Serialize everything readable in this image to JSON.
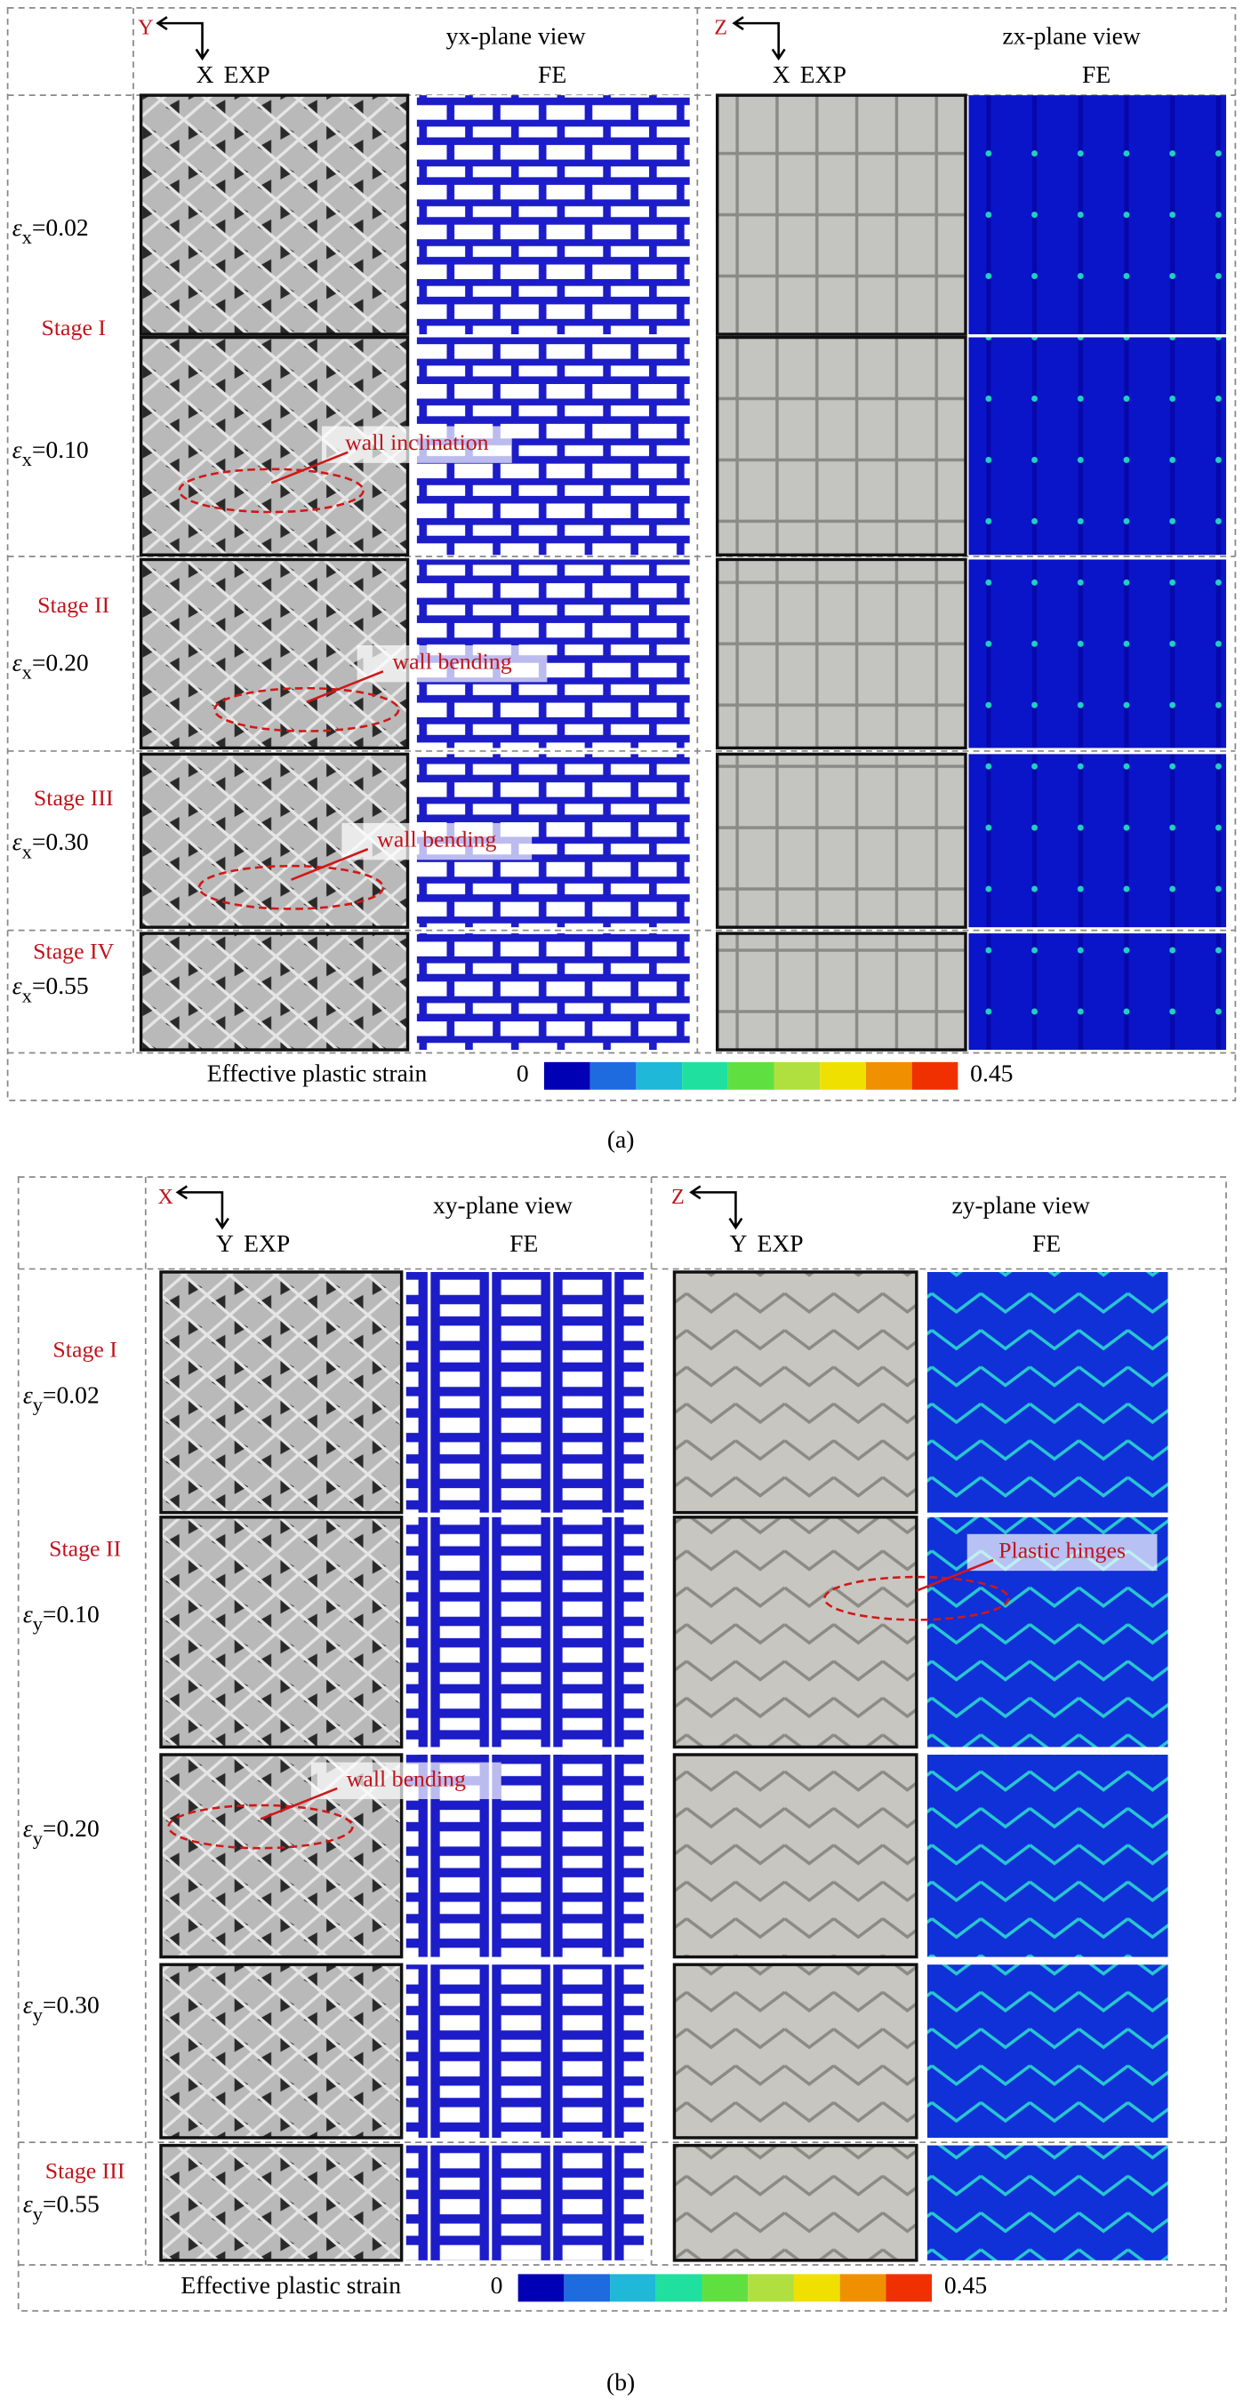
{
  "panel_a": {
    "caption": "(a)",
    "views": [
      {
        "title": "yx-plane view",
        "axis_h": "Y",
        "axis_v": "X",
        "columns": [
          "EXP",
          "FE"
        ]
      },
      {
        "title": "zx-plane view",
        "axis_h": "Z",
        "axis_v": "X",
        "columns": [
          "EXP",
          "FE"
        ]
      }
    ],
    "rows": [
      {
        "strain": {
          "symbol": "ε",
          "sub": "x",
          "value": "=0.02"
        }
      },
      {
        "stage": "Stage I",
        "strain": {
          "symbol": "ε",
          "sub": "x",
          "value": "=0.10"
        }
      },
      {
        "stage": "Stage II",
        "strain": {
          "symbol": "ε",
          "sub": "x",
          "value": "=0.20"
        }
      },
      {
        "stage": "Stage III",
        "strain": {
          "symbol": "ε",
          "sub": "x",
          "value": "=0.30"
        }
      },
      {
        "stage": "Stage IV",
        "strain": {
          "symbol": "ε",
          "sub": "x",
          "value": "=0.55"
        }
      }
    ],
    "annotations": [
      "wall inclination",
      "wall bending",
      "wall bending"
    ],
    "colorbar": {
      "label": "Effective plastic strain",
      "min": 0,
      "max": 0.45
    }
  },
  "panel_b": {
    "caption": "(b)",
    "views": [
      {
        "title": "xy-plane view",
        "axis_h": "X",
        "axis_v": "Y",
        "columns": [
          "EXP",
          "FE"
        ]
      },
      {
        "title": "zy-plane view",
        "axis_h": "Z",
        "axis_v": "Y",
        "columns": [
          "EXP",
          "FE"
        ]
      }
    ],
    "rows": [
      {
        "stage": "Stage I",
        "strain": {
          "symbol": "ε",
          "sub": "y",
          "value": "=0.02"
        }
      },
      {
        "stage": "Stage II",
        "strain": {
          "symbol": "ε",
          "sub": "y",
          "value": "=0.10"
        }
      },
      {
        "strain": {
          "symbol": "ε",
          "sub": "y",
          "value": "=0.20"
        }
      },
      {
        "strain": {
          "symbol": "ε",
          "sub": "y",
          "value": "=0.30"
        }
      },
      {
        "stage": "Stage III",
        "strain": {
          "symbol": "ε",
          "sub": "y",
          "value": "=0.55"
        }
      }
    ],
    "annotations": [
      "wall bending",
      "Plastic hinges"
    ],
    "colorbar": {
      "label": "Effective plastic strain",
      "min": 0,
      "max": 0.45
    }
  }
}
